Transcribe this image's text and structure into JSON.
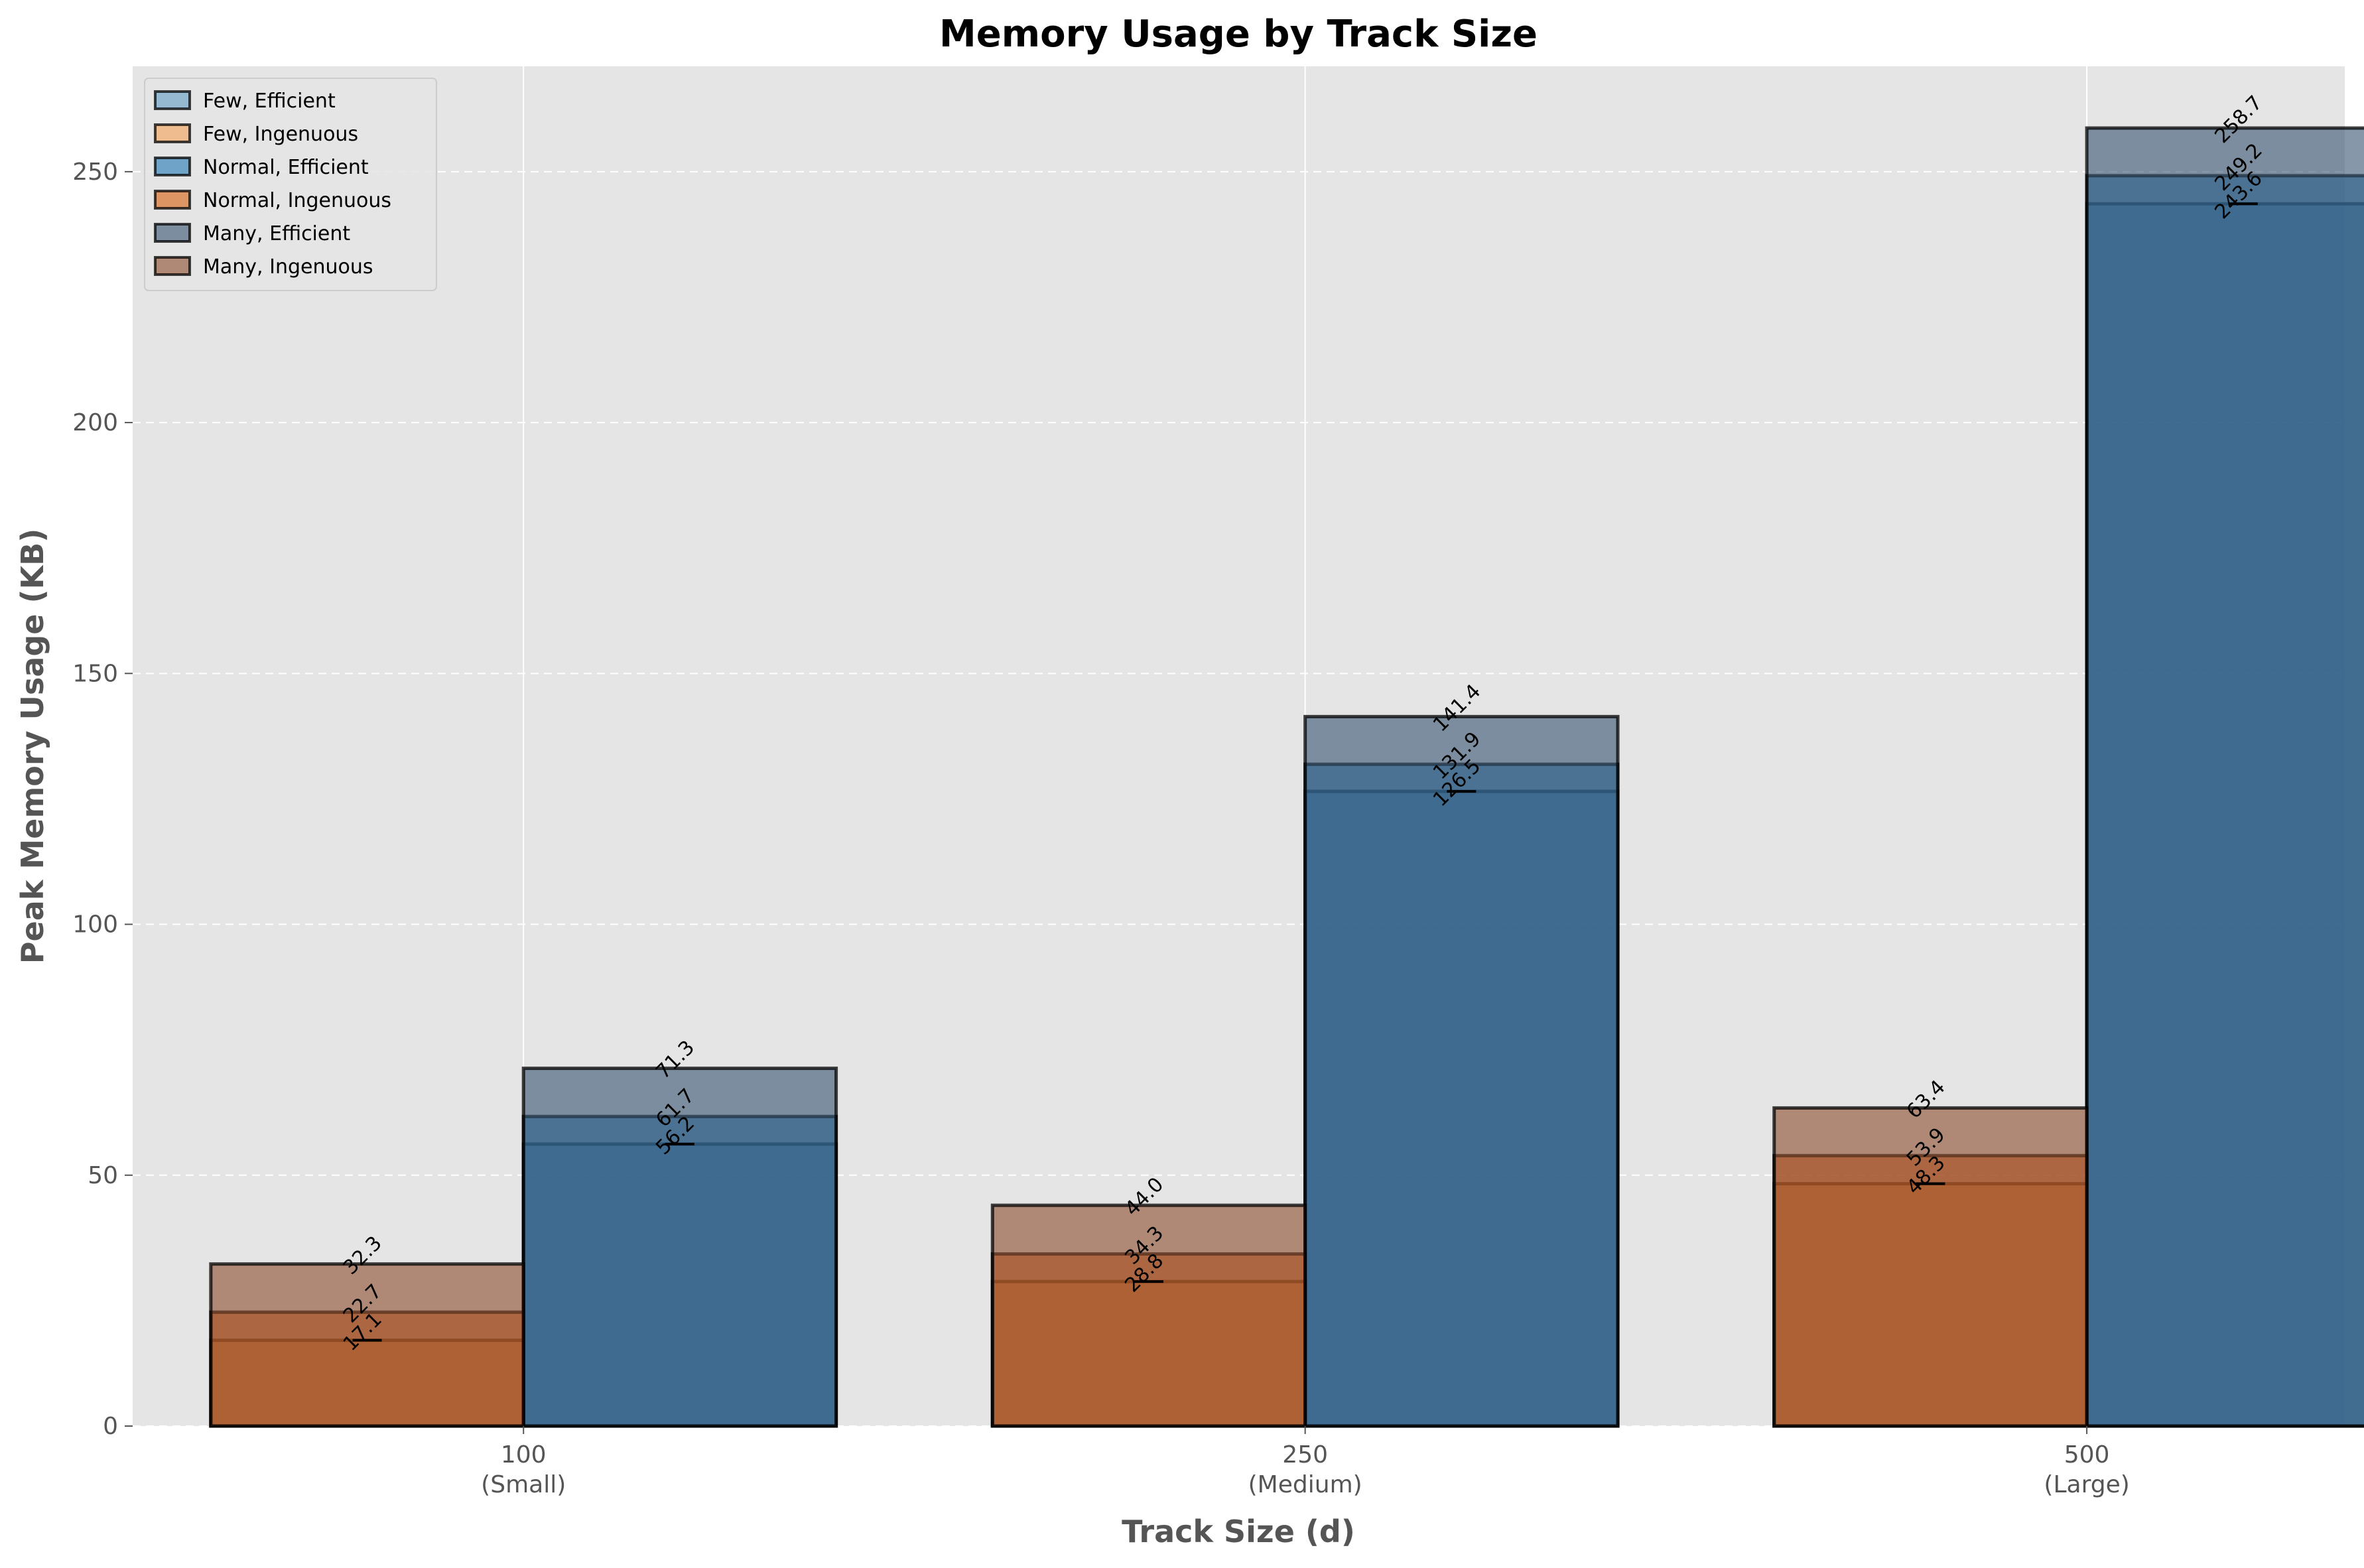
{
  "chart_data": {
    "type": "bar",
    "title": "Memory Usage by Track Size",
    "xlabel": "Track Size (d)",
    "ylabel": "Peak Memory Usage (KB)",
    "ylim": [
      0,
      271
    ],
    "yticks": [
      0,
      50,
      100,
      150,
      200,
      250
    ],
    "categories": [
      {
        "value": "100",
        "label": "(Small)"
      },
      {
        "value": "250",
        "label": "(Medium)"
      },
      {
        "value": "500",
        "label": "(Large)"
      }
    ],
    "grid": true,
    "legend_position": "top-left",
    "series": [
      {
        "name": "Few, Efficient",
        "method": "Efficient",
        "values": [
          56.2,
          126.5,
          243.6
        ],
        "color": "#1f77b4",
        "alpha": 0.4
      },
      {
        "name": "Few, Ingenuous",
        "method": "Ingenuous",
        "values": [
          17.1,
          28.8,
          48.3
        ],
        "color": "#ff7f0e",
        "alpha": 0.4
      },
      {
        "name": "Normal, Efficient",
        "method": "Efficient",
        "values": [
          61.7,
          131.9,
          249.2
        ],
        "color": "#1f77b4",
        "alpha": 0.6
      },
      {
        "name": "Normal, Ingenuous",
        "method": "Ingenuous",
        "values": [
          22.7,
          34.3,
          53.9
        ],
        "color": "#d95f0e",
        "alpha": 0.6
      },
      {
        "name": "Many, Efficient",
        "method": "Efficient",
        "values": [
          71.3,
          141.4,
          258.7
        ],
        "color": "#34526e",
        "alpha": 0.6
      },
      {
        "name": "Many, Ingenuous",
        "method": "Ingenuous",
        "values": [
          32.3,
          44.0,
          63.4
        ],
        "color": "#8b4a2b",
        "alpha": 0.6
      }
    ],
    "error_bar_series": [
      "Few, Efficient",
      "Few, Ingenuous"
    ]
  }
}
